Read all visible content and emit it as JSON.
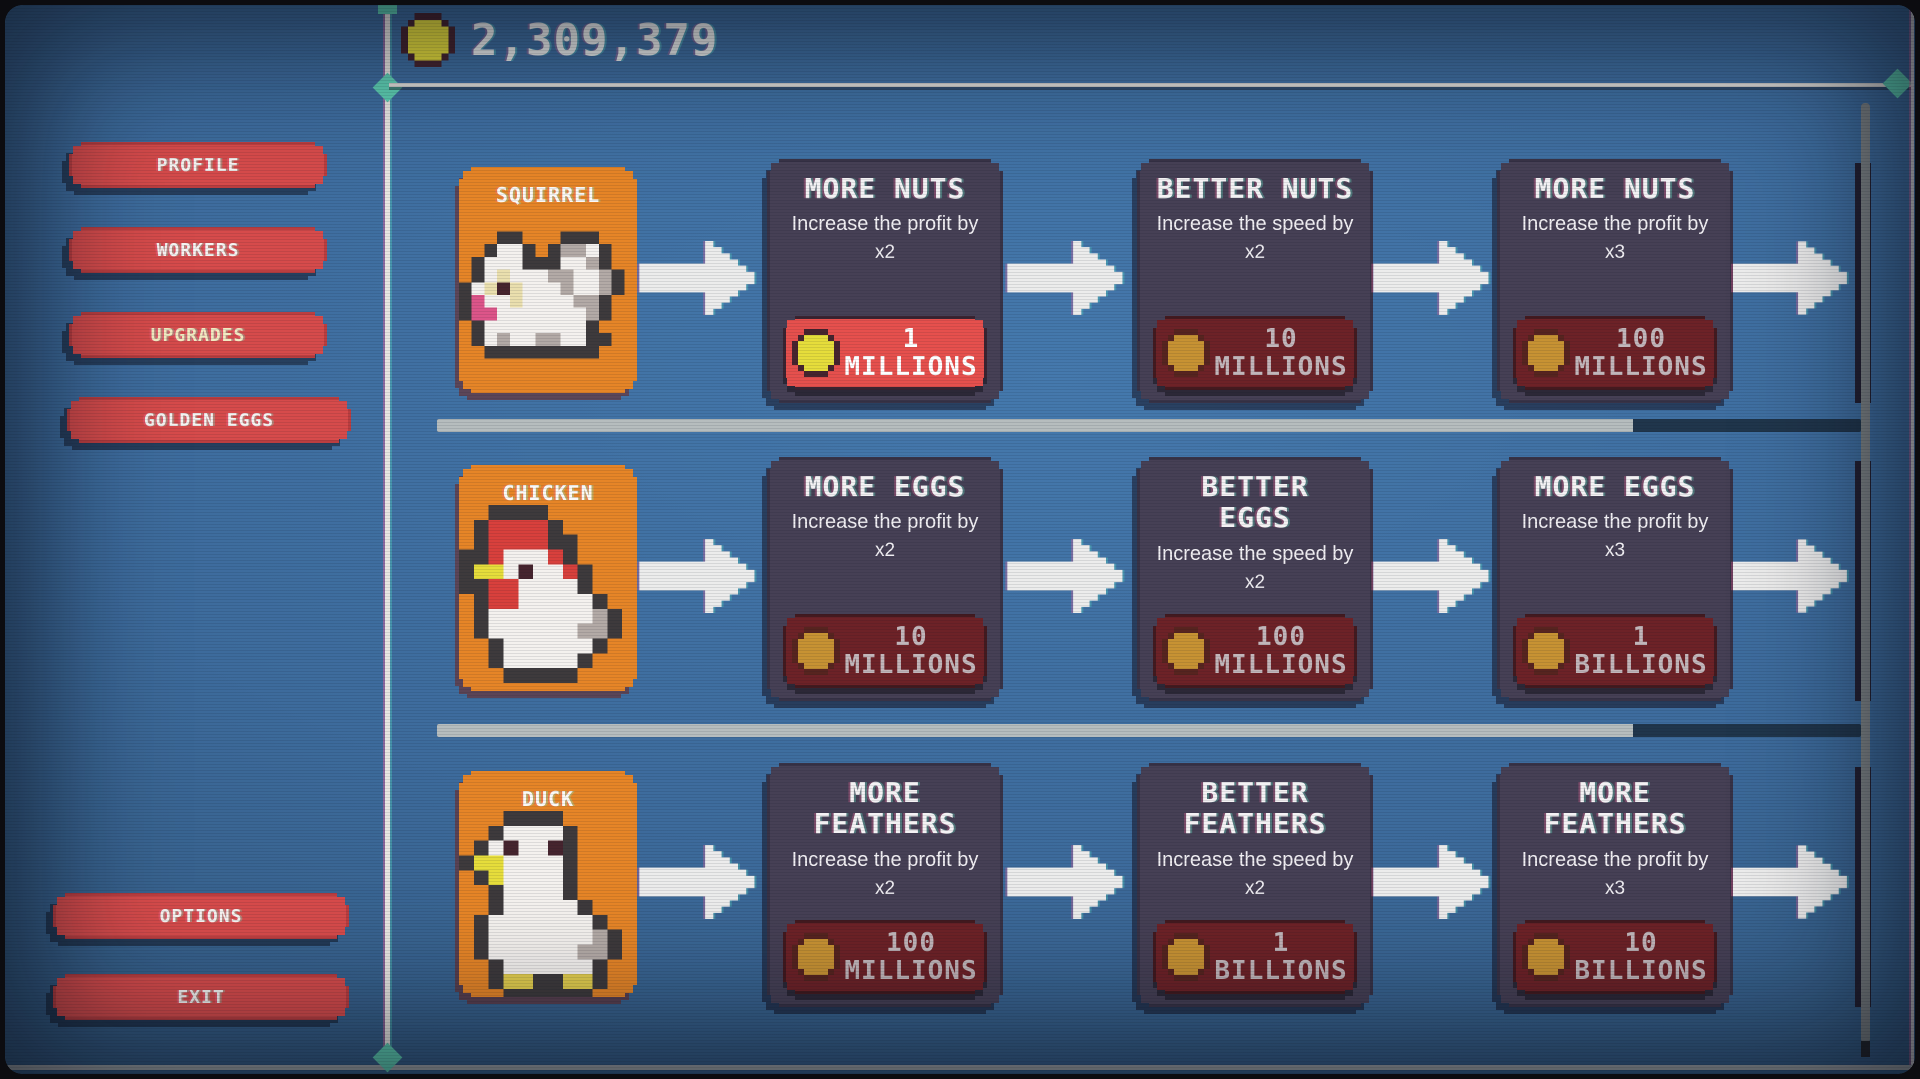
{
  "header": {
    "coin_icon": "coin-icon",
    "balance": "2,309,379"
  },
  "sidebar": {
    "nav": [
      {
        "label": "PROFILE",
        "active": false
      },
      {
        "label": "WORKERS",
        "active": false
      },
      {
        "label": "UPGRADES",
        "active": true
      },
      {
        "label": "GOLDEN EGGS",
        "active": false
      }
    ],
    "footer": [
      {
        "label": "OPTIONS"
      },
      {
        "label": "EXIT"
      }
    ]
  },
  "upgrade_rows": [
    {
      "animal": {
        "name": "SQUIRREL",
        "icon": "squirrel-icon"
      },
      "upgrades": [
        {
          "title": "MORE NUTS",
          "description": "Increase the profit by",
          "multiplier": "x2",
          "cost_value": "1",
          "cost_unit": "MILLIONS",
          "affordable": true
        },
        {
          "title": "BETTER NUTS",
          "description": "Increase the speed by",
          "multiplier": "x2",
          "cost_value": "10",
          "cost_unit": "MILLIONS",
          "affordable": false
        },
        {
          "title": "MORE NUTS",
          "description": "Increase the profit by",
          "multiplier": "x3",
          "cost_value": "100",
          "cost_unit": "MILLIONS",
          "affordable": false
        }
      ]
    },
    {
      "animal": {
        "name": "CHICKEN",
        "icon": "chicken-icon"
      },
      "upgrades": [
        {
          "title": "MORE EGGS",
          "description": "Increase the profit by",
          "multiplier": "x2",
          "cost_value": "10",
          "cost_unit": "MILLIONS",
          "affordable": false
        },
        {
          "title": "BETTER\nEGGS",
          "description": "Increase the speed by",
          "multiplier": "x2",
          "cost_value": "100",
          "cost_unit": "MILLIONS",
          "affordable": false
        },
        {
          "title": "MORE EGGS",
          "description": "Increase the profit by",
          "multiplier": "x3",
          "cost_value": "1",
          "cost_unit": "BILLIONS",
          "affordable": false
        }
      ]
    },
    {
      "animal": {
        "name": "DUCK",
        "icon": "duck-icon"
      },
      "upgrades": [
        {
          "title": "MORE\nFEATHERS",
          "description": "Increase the profit by",
          "multiplier": "x2",
          "cost_value": "100",
          "cost_unit": "MILLIONS",
          "affordable": false
        },
        {
          "title": "BETTER\nFEATHERS",
          "description": "Increase the speed by",
          "multiplier": "x2",
          "cost_value": "1",
          "cost_unit": "BILLIONS",
          "affordable": false
        },
        {
          "title": "MORE\nFEATHERS",
          "description": "Increase the profit by",
          "multiplier": "x3",
          "cost_value": "10",
          "cost_unit": "BILLIONS",
          "affordable": false
        }
      ]
    }
  ],
  "dividers": [
    {
      "progress": 0.84
    },
    {
      "progress": 0.84
    }
  ],
  "colors": {
    "background": "#3f6e9f",
    "button_red": "#d64b4b",
    "card_purple": "#464055",
    "animal_orange": "#e68527",
    "price_affordable": "#e6504d",
    "price_locked": "#6d2227",
    "coin_gold": "#e6dd3b",
    "coin_dull": "#c79233",
    "accent_teal": "#5fd0b4",
    "progress_fill": "#b6bdbe",
    "progress_track": "#20364c",
    "arrow_white": "#ececec"
  }
}
